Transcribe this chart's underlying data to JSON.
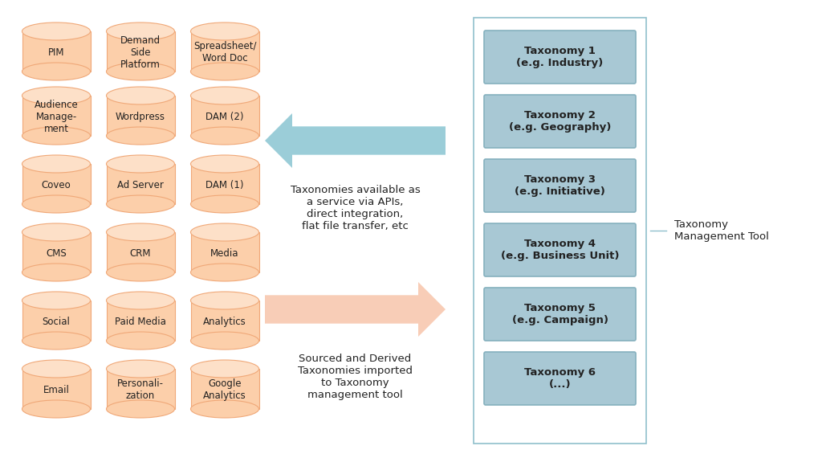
{
  "background_color": "#ffffff",
  "cylinder_face_color": "#FCCFAA",
  "cylinder_top_color": "#FDE0C8",
  "cylinder_edge_color": "#F0A878",
  "taxonomy_box_color": "#A8C8D4",
  "taxonomy_box_edge": "#85B0BE",
  "taxonomy_container_edge": "#90C0CC",
  "arrow_left_color": "#90C8D4",
  "arrow_right_color": "#F8C8B0",
  "text_color": "#222222",
  "cylinders": [
    [
      "PIM",
      "Demand\nSide\nPlatform",
      "Spreadsheet/\nWord Doc"
    ],
    [
      "Audience\nManage-\nment",
      "Wordpress",
      "DAM (2)"
    ],
    [
      "Coveo",
      "Ad Server",
      "DAM (1)"
    ],
    [
      "CMS",
      "CRM",
      "Media"
    ],
    [
      "Social",
      "Paid Media",
      "Analytics"
    ],
    [
      "Email",
      "Personali-\nzation",
      "Google\nAnalytics"
    ]
  ],
  "taxonomies": [
    "Taxonomy 1\n(e.g. Industry)",
    "Taxonomy 2\n(e.g. Geography)",
    "Taxonomy 3\n(e.g. Initiative)",
    "Taxonomy 4\n(e.g. Business Unit)",
    "Taxonomy 5\n(e.g. Campaign)",
    "Taxonomy 6\n(...)"
  ],
  "arrow_left_text": "Taxonomies available as\na service via APIs,\ndirect integration,\nflat file transfer, etc",
  "arrow_right_text": "Sourced and Derived\nTaxonomies imported\nto Taxonomy\nmanagement tool",
  "label_taxonomy_tool": "Taxonomy\nManagement Tool",
  "font_size_cylinder": 8.5,
  "font_size_taxonomy": 9.5,
  "font_size_arrow_text": 9.5,
  "font_size_label": 9.5
}
